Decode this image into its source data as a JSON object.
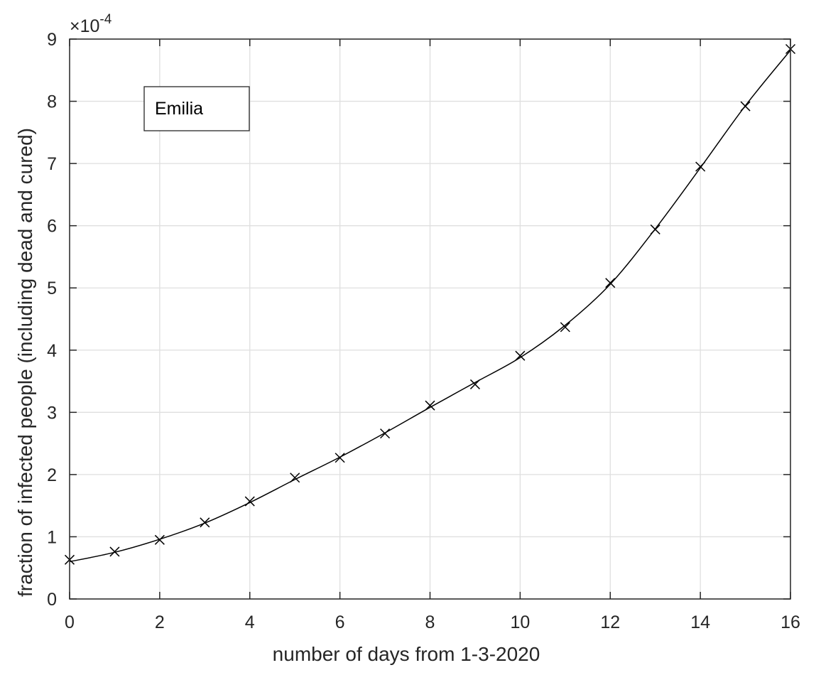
{
  "chart_data": {
    "type": "line",
    "title": "",
    "xlabel": "number of days from 1-3-2020",
    "ylabel": "fraction of infected people (including dead and cured)",
    "xlim": [
      0,
      16
    ],
    "ylim": [
      0,
      9
    ],
    "y_scale_exponent_base": "10",
    "y_scale_exponent": "-4",
    "y_scale_multiplier_symbol": "×",
    "xticks": [
      "0",
      "2",
      "4",
      "6",
      "8",
      "10",
      "12",
      "14",
      "16"
    ],
    "yticks": [
      "0",
      "1",
      "2",
      "3",
      "4",
      "5",
      "6",
      "7",
      "8",
      "9"
    ],
    "grid": true,
    "legend_position": "top-left",
    "series": [
      {
        "name": "Emilia",
        "marker": "x",
        "color": "#000000",
        "x": [
          0,
          1,
          2,
          3,
          4,
          5,
          6,
          7,
          8,
          9,
          10,
          11,
          12,
          13,
          14,
          15,
          16
        ],
        "y": [
          0.63,
          0.76,
          0.95,
          1.23,
          1.57,
          1.95,
          2.27,
          2.66,
          3.11,
          3.45,
          3.91,
          4.37,
          5.08,
          5.94,
          6.95,
          7.92,
          8.84
        ]
      }
    ],
    "fit_curve_y": [
      0.6,
      0.75,
      0.96,
      1.22,
      1.55,
      1.92,
      2.28,
      2.67,
      3.08,
      3.48,
      3.88,
      4.4,
      5.06,
      5.95,
      6.93,
      7.93,
      8.82
    ]
  }
}
